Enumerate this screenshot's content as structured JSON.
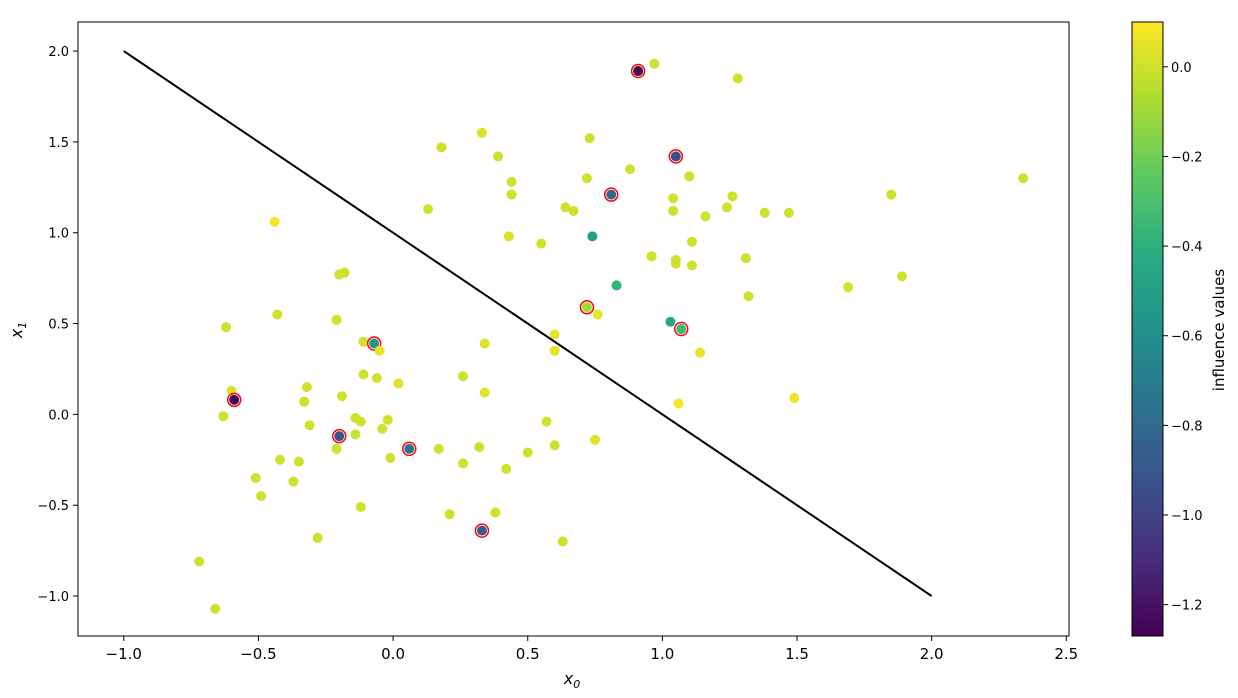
{
  "chart_data": {
    "type": "scatter",
    "title": "",
    "xlabel": "x",
    "xlabel_sub": "0",
    "ylabel": "x",
    "ylabel_sub": "1",
    "xlim": [
      -1.17,
      2.51
    ],
    "ylim": [
      -1.22,
      2.16
    ],
    "xticks": [
      -1.0,
      -0.5,
      0.0,
      0.5,
      1.0,
      1.5,
      2.0,
      2.5
    ],
    "xtick_labels": [
      "−1.0",
      "−0.5",
      "0.0",
      "0.5",
      "1.0",
      "1.5",
      "2.0",
      "2.5"
    ],
    "yticks": [
      -1.0,
      -0.5,
      0.0,
      0.5,
      1.0,
      1.5,
      2.0
    ],
    "ytick_labels": [
      "−1.0",
      "−0.5",
      "0.0",
      "0.5",
      "1.0",
      "1.5",
      "2.0"
    ],
    "grid": false,
    "colormap": "viridis",
    "colorbar": {
      "label": "influence values",
      "range": [
        -1.27,
        0.1
      ],
      "ticks": [
        0.0,
        -0.2,
        -0.4,
        -0.6,
        -0.8,
        -1.0,
        -1.2
      ],
      "tick_labels": [
        "0.0",
        "−0.2",
        "−0.4",
        "−0.6",
        "−0.8",
        "−1.0",
        "−1.2"
      ]
    },
    "decision_boundary": {
      "x": [
        -1.0,
        2.0
      ],
      "y": [
        2.0,
        -1.0
      ],
      "color": "#000000"
    },
    "highlight_color": "#ff0000",
    "points": [
      {
        "x": 0.91,
        "y": 1.89,
        "v": -1.27,
        "h": true
      },
      {
        "x": 0.97,
        "y": 1.93,
        "v": 0.0
      },
      {
        "x": 1.28,
        "y": 1.85,
        "v": 0.0
      },
      {
        "x": 0.33,
        "y": 1.55,
        "v": 0.03
      },
      {
        "x": 0.73,
        "y": 1.52,
        "v": 0.0
      },
      {
        "x": 0.18,
        "y": 1.47,
        "v": 0.0
      },
      {
        "x": 0.39,
        "y": 1.42,
        "v": 0.0
      },
      {
        "x": 1.05,
        "y": 1.42,
        "v": -0.95,
        "h": true
      },
      {
        "x": 0.88,
        "y": 1.35,
        "v": 0.0
      },
      {
        "x": 1.1,
        "y": 1.31,
        "v": 0.0
      },
      {
        "x": 2.34,
        "y": 1.3,
        "v": 0.0
      },
      {
        "x": 0.72,
        "y": 1.3,
        "v": 0.0
      },
      {
        "x": 0.44,
        "y": 1.28,
        "v": 0.0
      },
      {
        "x": 0.81,
        "y": 1.21,
        "v": -0.82,
        "h": true
      },
      {
        "x": 0.44,
        "y": 1.21,
        "v": 0.0
      },
      {
        "x": 1.85,
        "y": 1.21,
        "v": 0.0
      },
      {
        "x": 1.26,
        "y": 1.2,
        "v": 0.0
      },
      {
        "x": 1.04,
        "y": 1.19,
        "v": 0.0
      },
      {
        "x": 0.64,
        "y": 1.14,
        "v": 0.0
      },
      {
        "x": 1.24,
        "y": 1.14,
        "v": 0.0
      },
      {
        "x": 0.13,
        "y": 1.13,
        "v": 0.0
      },
      {
        "x": 1.04,
        "y": 1.12,
        "v": 0.0
      },
      {
        "x": 0.67,
        "y": 1.12,
        "v": 0.0
      },
      {
        "x": 1.38,
        "y": 1.11,
        "v": 0.0
      },
      {
        "x": 1.47,
        "y": 1.11,
        "v": 0.0
      },
      {
        "x": 1.16,
        "y": 1.09,
        "v": 0.0
      },
      {
        "x": -0.44,
        "y": 1.06,
        "v": 0.08
      },
      {
        "x": 0.74,
        "y": 0.98,
        "v": -0.5
      },
      {
        "x": 0.43,
        "y": 0.98,
        "v": 0.02
      },
      {
        "x": 1.11,
        "y": 0.95,
        "v": 0.0
      },
      {
        "x": 0.55,
        "y": 0.94,
        "v": 0.0
      },
      {
        "x": 0.96,
        "y": 0.87,
        "v": 0.0
      },
      {
        "x": 1.31,
        "y": 0.86,
        "v": 0.0
      },
      {
        "x": 1.05,
        "y": 0.85,
        "v": 0.0
      },
      {
        "x": 1.05,
        "y": 0.83,
        "v": 0.0
      },
      {
        "x": 1.11,
        "y": 0.82,
        "v": 0.0
      },
      {
        "x": -0.18,
        "y": 0.78,
        "v": 0.0
      },
      {
        "x": -0.2,
        "y": 0.77,
        "v": 0.0
      },
      {
        "x": 1.89,
        "y": 0.76,
        "v": 0.0
      },
      {
        "x": 0.83,
        "y": 0.71,
        "v": -0.38
      },
      {
        "x": 1.69,
        "y": 0.7,
        "v": 0.0
      },
      {
        "x": 1.32,
        "y": 0.65,
        "v": 0.0
      },
      {
        "x": 0.72,
        "y": 0.59,
        "v": -0.1,
        "h": true
      },
      {
        "x": 0.76,
        "y": 0.55,
        "v": 0.05
      },
      {
        "x": -0.43,
        "y": 0.55,
        "v": 0.0
      },
      {
        "x": -0.21,
        "y": 0.52,
        "v": 0.0
      },
      {
        "x": 1.03,
        "y": 0.51,
        "v": -0.45
      },
      {
        "x": -0.62,
        "y": 0.48,
        "v": 0.0
      },
      {
        "x": 1.07,
        "y": 0.47,
        "v": -0.35,
        "h": true
      },
      {
        "x": 0.6,
        "y": 0.44,
        "v": 0.05
      },
      {
        "x": -0.11,
        "y": 0.4,
        "v": 0.0
      },
      {
        "x": 0.34,
        "y": 0.39,
        "v": 0.03
      },
      {
        "x": -0.07,
        "y": 0.39,
        "v": -0.55,
        "h": true
      },
      {
        "x": -0.05,
        "y": 0.35,
        "v": 0.05
      },
      {
        "x": 0.6,
        "y": 0.35,
        "v": 0.05
      },
      {
        "x": 1.14,
        "y": 0.34,
        "v": 0.06
      },
      {
        "x": -0.11,
        "y": 0.22,
        "v": 0.0
      },
      {
        "x": 0.26,
        "y": 0.21,
        "v": 0.0
      },
      {
        "x": -0.06,
        "y": 0.2,
        "v": 0.0
      },
      {
        "x": 0.02,
        "y": 0.17,
        "v": 0.03
      },
      {
        "x": -0.32,
        "y": 0.15,
        "v": 0.0
      },
      {
        "x": -0.6,
        "y": 0.13,
        "v": 0.02
      },
      {
        "x": 0.34,
        "y": 0.12,
        "v": 0.03
      },
      {
        "x": -0.19,
        "y": 0.1,
        "v": 0.0
      },
      {
        "x": -0.59,
        "y": 0.08,
        "v": -1.25,
        "h": true
      },
      {
        "x": -0.33,
        "y": 0.07,
        "v": 0.0
      },
      {
        "x": 1.49,
        "y": 0.09,
        "v": 0.06
      },
      {
        "x": 1.06,
        "y": 0.06,
        "v": 0.08
      },
      {
        "x": -0.14,
        "y": -0.02,
        "v": 0.0
      },
      {
        "x": -0.63,
        "y": -0.01,
        "v": 0.0
      },
      {
        "x": -0.02,
        "y": -0.03,
        "v": 0.0
      },
      {
        "x": -0.12,
        "y": -0.04,
        "v": 0.0
      },
      {
        "x": 0.57,
        "y": -0.04,
        "v": 0.0
      },
      {
        "x": -0.31,
        "y": -0.06,
        "v": 0.0
      },
      {
        "x": -0.04,
        "y": -0.08,
        "v": 0.0
      },
      {
        "x": -0.14,
        "y": -0.11,
        "v": 0.0
      },
      {
        "x": -0.2,
        "y": -0.12,
        "v": -0.92,
        "h": true
      },
      {
        "x": 0.75,
        "y": -0.14,
        "v": 0.03
      },
      {
        "x": 0.6,
        "y": -0.17,
        "v": 0.0
      },
      {
        "x": 0.32,
        "y": -0.18,
        "v": 0.0
      },
      {
        "x": -0.21,
        "y": -0.19,
        "v": 0.0
      },
      {
        "x": 0.17,
        "y": -0.19,
        "v": 0.0
      },
      {
        "x": 0.06,
        "y": -0.19,
        "v": -0.75,
        "h": true
      },
      {
        "x": 0.5,
        "y": -0.21,
        "v": 0.0
      },
      {
        "x": -0.01,
        "y": -0.24,
        "v": 0.0
      },
      {
        "x": -0.42,
        "y": -0.25,
        "v": 0.0
      },
      {
        "x": -0.35,
        "y": -0.26,
        "v": 0.0
      },
      {
        "x": 0.26,
        "y": -0.27,
        "v": 0.0
      },
      {
        "x": 0.42,
        "y": -0.3,
        "v": 0.0
      },
      {
        "x": -0.51,
        "y": -0.35,
        "v": 0.0
      },
      {
        "x": -0.37,
        "y": -0.37,
        "v": 0.0
      },
      {
        "x": -0.49,
        "y": -0.45,
        "v": 0.0
      },
      {
        "x": -0.12,
        "y": -0.51,
        "v": 0.0
      },
      {
        "x": 0.38,
        "y": -0.54,
        "v": 0.0
      },
      {
        "x": 0.21,
        "y": -0.55,
        "v": 0.0
      },
      {
        "x": 0.33,
        "y": -0.64,
        "v": -0.88,
        "h": true
      },
      {
        "x": -0.28,
        "y": -0.68,
        "v": 0.0
      },
      {
        "x": 0.63,
        "y": -0.7,
        "v": 0.0
      },
      {
        "x": -0.72,
        "y": -0.81,
        "v": 0.0
      },
      {
        "x": -0.66,
        "y": -1.07,
        "v": 0.0
      }
    ]
  }
}
